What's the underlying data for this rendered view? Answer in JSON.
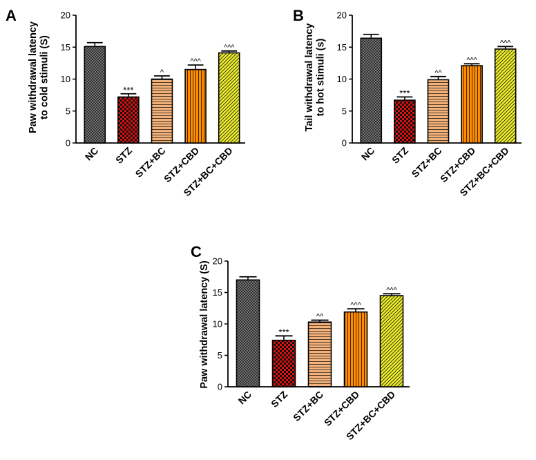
{
  "panels": [
    "A",
    "B",
    "C"
  ],
  "colors": {
    "NC": "#555555",
    "STZ": "#e01010",
    "STZ+BC": "#f3b27c",
    "STZ+CBD": "#ff8c00",
    "STZ+BC+CBD": "#ecec30"
  },
  "patterns": [
    "crosshatch",
    "checker",
    "horizontal-lines",
    "vertical-lines",
    "diagonal-lines"
  ],
  "chart_data": [
    {
      "type": "bar",
      "panel": "A",
      "ylabel": "Paw withdrawal latency to cold stimuli (S)",
      "ylim": [
        0,
        20
      ],
      "yticks": [
        0,
        5,
        10,
        15,
        20
      ],
      "categories": [
        "NC",
        "STZ",
        "STZ+BC",
        "STZ+CBD",
        "STZ+BC+CBD"
      ],
      "values": [
        15.1,
        7.2,
        10.0,
        11.5,
        14.1
      ],
      "errors": [
        0.6,
        0.5,
        0.5,
        0.7,
        0.3
      ],
      "annotations": [
        "",
        "***",
        "^",
        "^^^",
        "^^^"
      ]
    },
    {
      "type": "bar",
      "panel": "B",
      "ylabel": "Tail withdrawal latency to hot stimuli (s)",
      "ylim": [
        0,
        20
      ],
      "yticks": [
        0,
        5,
        10,
        15,
        20
      ],
      "categories": [
        "NC",
        "STZ",
        "STZ+BC",
        "STZ+CBD",
        "STZ+BC+CBD"
      ],
      "values": [
        16.4,
        6.7,
        9.9,
        12.1,
        14.7
      ],
      "errors": [
        0.6,
        0.5,
        0.5,
        0.3,
        0.4
      ],
      "annotations": [
        "",
        "***",
        "^^",
        "^^^",
        "^^^"
      ]
    },
    {
      "type": "bar",
      "panel": "C",
      "ylabel": "Paw withdrawal latency (S)",
      "ylim": [
        0,
        20
      ],
      "yticks": [
        0,
        5,
        10,
        15,
        20
      ],
      "categories": [
        "NC",
        "STZ",
        "STZ+BC",
        "STZ+CBD",
        "STZ+BC+CBD"
      ],
      "values": [
        17.0,
        7.4,
        10.3,
        11.9,
        14.5
      ],
      "errors": [
        0.5,
        0.7,
        0.3,
        0.5,
        0.3
      ],
      "annotations": [
        "",
        "***",
        "^^",
        "^^^",
        "^^^"
      ]
    }
  ]
}
